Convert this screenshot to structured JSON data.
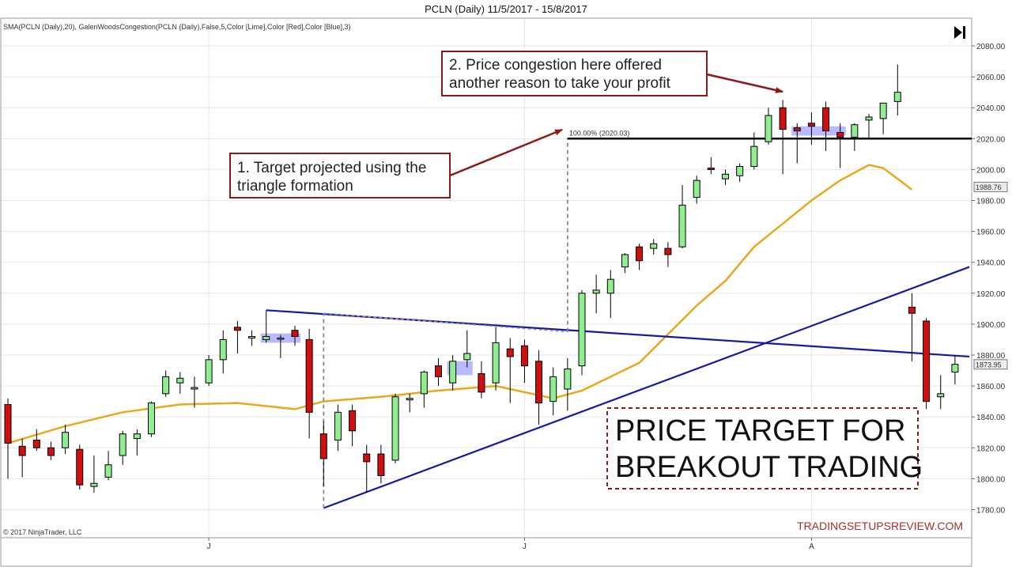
{
  "chart_data": {
    "type": "candlestick",
    "title": "PCLN (Daily)  11/5/2017 - 15/8/2017",
    "indicator_label": "SMA(PCLN (Daily),20), GalenWoodsCongestion(PCLN (Daily),False,5,Color [Lime],Color [Red],Color [Blue],3)",
    "copyright": "© 2017 NinjaTrader, LLC",
    "brand": "TRADINGSETUPSREVIEW.COM",
    "headline_lines": [
      "PRICE TARGET FOR",
      "BREAKOUT TRADING"
    ],
    "callout_1_lines": [
      "1. Target projected using the",
      "triangle formation"
    ],
    "callout_2_lines": [
      "2. Price congestion here offered",
      "another reason to take your profit"
    ],
    "fib_label": "100.00% (2020.03)",
    "target_level": 2020.03,
    "ylim": [
      1770,
      2090
    ],
    "y_ticks": [
      1780,
      1800,
      1820,
      1840,
      1860,
      1880,
      1900,
      1920,
      1940,
      1960,
      1980,
      2000,
      2020,
      2040,
      2060,
      2080
    ],
    "y_tick_labels": [
      "1780.00",
      "1800.00",
      "1820.00",
      "1840.00",
      "1860.00",
      "1880.00",
      "1900.00",
      "1920.00",
      "1940.00",
      "1960.00",
      "1980.00",
      "2000.00",
      "2020.00",
      "2040.00",
      "2060.00",
      "2080.00"
    ],
    "x_ticks": [
      {
        "index": 14,
        "label": "J"
      },
      {
        "index": 36,
        "label": "J"
      },
      {
        "index": 56,
        "label": "A"
      }
    ],
    "price_badges": [
      {
        "value": 1988.76,
        "label": "1988.76"
      },
      {
        "value": 1873.95,
        "label": "1873.95"
      }
    ],
    "colors": {
      "up": "#90ee90",
      "down": "#d01010",
      "sma": "#e8a820",
      "trend": "#1a1aa0",
      "congestion": "#8080ff",
      "callout_border": "#8b1a1a",
      "target": "#000000"
    },
    "candles": [
      {
        "o": 1848,
        "h": 1852,
        "l": 1800,
        "c": 1823
      },
      {
        "o": 1821,
        "h": 1826,
        "l": 1801,
        "c": 1815
      },
      {
        "o": 1825,
        "h": 1832,
        "l": 1818,
        "c": 1820
      },
      {
        "o": 1820,
        "h": 1824,
        "l": 1812,
        "c": 1815
      },
      {
        "o": 1820,
        "h": 1835,
        "l": 1816,
        "c": 1830
      },
      {
        "o": 1819,
        "h": 1822,
        "l": 1793,
        "c": 1796
      },
      {
        "o": 1795,
        "h": 1815,
        "l": 1791,
        "c": 1797
      },
      {
        "o": 1801,
        "h": 1818,
        "l": 1799,
        "c": 1809
      },
      {
        "o": 1815,
        "h": 1831,
        "l": 1809,
        "c": 1829
      },
      {
        "o": 1826,
        "h": 1832,
        "l": 1815,
        "c": 1829
      },
      {
        "o": 1829,
        "h": 1850,
        "l": 1827,
        "c": 1849
      },
      {
        "o": 1855,
        "h": 1870,
        "l": 1853,
        "c": 1866
      },
      {
        "o": 1862,
        "h": 1869,
        "l": 1855,
        "c": 1865
      },
      {
        "o": 1858,
        "h": 1866,
        "l": 1846,
        "c": 1859
      },
      {
        "o": 1862,
        "h": 1880,
        "l": 1860,
        "c": 1877
      },
      {
        "o": 1877,
        "h": 1896,
        "l": 1868,
        "c": 1890
      },
      {
        "o": 1898,
        "h": 1902,
        "l": 1881,
        "c": 1896
      },
      {
        "o": 1891,
        "h": 1896,
        "l": 1886,
        "c": 1892
      },
      {
        "o": 1890,
        "h": 1909,
        "l": 1888,
        "c": 1892
      },
      {
        "o": 1891,
        "h": 1893,
        "l": 1878,
        "c": 1891
      },
      {
        "o": 1896,
        "h": 1899,
        "l": 1886,
        "c": 1892
      },
      {
        "o": 1890,
        "h": 1897,
        "l": 1826,
        "c": 1843
      },
      {
        "o": 1829,
        "h": 1837,
        "l": 1795,
        "c": 1813
      },
      {
        "o": 1825,
        "h": 1848,
        "l": 1818,
        "c": 1843
      },
      {
        "o": 1844,
        "h": 1848,
        "l": 1821,
        "c": 1831
      },
      {
        "o": 1816,
        "h": 1822,
        "l": 1791,
        "c": 1811
      },
      {
        "o": 1816,
        "h": 1822,
        "l": 1797,
        "c": 1802
      },
      {
        "o": 1812,
        "h": 1855,
        "l": 1810,
        "c": 1853
      },
      {
        "o": 1851,
        "h": 1855,
        "l": 1843,
        "c": 1852
      },
      {
        "o": 1855,
        "h": 1870,
        "l": 1846,
        "c": 1869
      },
      {
        "o": 1873,
        "h": 1878,
        "l": 1860,
        "c": 1866
      },
      {
        "o": 1862,
        "h": 1880,
        "l": 1857,
        "c": 1876
      },
      {
        "o": 1877,
        "h": 1896,
        "l": 1872,
        "c": 1881
      },
      {
        "o": 1868,
        "h": 1876,
        "l": 1852,
        "c": 1856
      },
      {
        "o": 1862,
        "h": 1898,
        "l": 1857,
        "c": 1888
      },
      {
        "o": 1884,
        "h": 1891,
        "l": 1849,
        "c": 1879
      },
      {
        "o": 1886,
        "h": 1890,
        "l": 1862,
        "c": 1873
      },
      {
        "o": 1876,
        "h": 1883,
        "l": 1835,
        "c": 1849
      },
      {
        "o": 1850,
        "h": 1872,
        "l": 1841,
        "c": 1866
      },
      {
        "o": 1858,
        "h": 1878,
        "l": 1844,
        "c": 1871
      },
      {
        "o": 1873,
        "h": 1922,
        "l": 1867,
        "c": 1920
      },
      {
        "o": 1920,
        "h": 1932,
        "l": 1907,
        "c": 1922
      },
      {
        "o": 1920,
        "h": 1935,
        "l": 1904,
        "c": 1929
      },
      {
        "o": 1937,
        "h": 1946,
        "l": 1933,
        "c": 1945
      },
      {
        "o": 1950,
        "h": 1952,
        "l": 1935,
        "c": 1941
      },
      {
        "o": 1949,
        "h": 1955,
        "l": 1945,
        "c": 1952
      },
      {
        "o": 1949,
        "h": 1953,
        "l": 1937,
        "c": 1945
      },
      {
        "o": 1950,
        "h": 1990,
        "l": 1949,
        "c": 1977
      },
      {
        "o": 1982,
        "h": 1996,
        "l": 1978,
        "c": 1993
      },
      {
        "o": 2001,
        "h": 2008,
        "l": 1997,
        "c": 2000
      },
      {
        "o": 1994,
        "h": 2000,
        "l": 1990,
        "c": 1997
      },
      {
        "o": 1996,
        "h": 2004,
        "l": 1992,
        "c": 2002
      },
      {
        "o": 2002,
        "h": 2024,
        "l": 2000,
        "c": 2015
      },
      {
        "o": 2018,
        "h": 2040,
        "l": 2016,
        "c": 2035
      },
      {
        "o": 2040,
        "h": 2045,
        "l": 1997,
        "c": 2026
      },
      {
        "o": 2027,
        "h": 2030,
        "l": 2004,
        "c": 2025
      },
      {
        "o": 2030,
        "h": 2037,
        "l": 2016,
        "c": 2028
      },
      {
        "o": 2040,
        "h": 2044,
        "l": 2012,
        "c": 2025
      },
      {
        "o": 2024,
        "h": 2030,
        "l": 2001,
        "c": 2021
      },
      {
        "o": 2021,
        "h": 2030,
        "l": 2012,
        "c": 2029
      },
      {
        "o": 2032,
        "h": 2036,
        "l": 2020,
        "c": 2034
      },
      {
        "o": 2033,
        "h": 2043,
        "l": 2023,
        "c": 2043
      },
      {
        "o": 2044,
        "h": 2068,
        "l": 2035,
        "c": 2050
      },
      {
        "o": 1911,
        "h": 1920,
        "l": 1876,
        "c": 1907
      },
      {
        "o": 1902,
        "h": 1904,
        "l": 1845,
        "c": 1850
      },
      {
        "o": 1853,
        "h": 1867,
        "l": 1845,
        "c": 1855
      },
      {
        "o": 1869,
        "h": 1880,
        "l": 1861,
        "c": 1874
      }
    ],
    "sma": [
      {
        "index": 0,
        "value": 1823
      },
      {
        "index": 4,
        "value": 1834
      },
      {
        "index": 8,
        "value": 1843
      },
      {
        "index": 12,
        "value": 1848
      },
      {
        "index": 16,
        "value": 1849
      },
      {
        "index": 20,
        "value": 1845
      },
      {
        "index": 22,
        "value": 1850
      },
      {
        "index": 26,
        "value": 1853
      },
      {
        "index": 30,
        "value": 1857
      },
      {
        "index": 34,
        "value": 1860
      },
      {
        "index": 38,
        "value": 1852
      },
      {
        "index": 40,
        "value": 1857
      },
      {
        "index": 44,
        "value": 1875
      },
      {
        "index": 48,
        "value": 1912
      },
      {
        "index": 50,
        "value": 1928
      },
      {
        "index": 52,
        "value": 1950
      },
      {
        "index": 54,
        "value": 1965
      },
      {
        "index": 56,
        "value": 1980
      },
      {
        "index": 58,
        "value": 1993
      },
      {
        "index": 60,
        "value": 2003
      },
      {
        "index": 61,
        "value": 2001
      },
      {
        "index": 62,
        "value": 1994
      },
      {
        "index": 63,
        "value": 1987
      }
    ],
    "trendlines": [
      {
        "from_index": 18,
        "from_value": 1909,
        "to_index": 67,
        "to_value": 1879
      },
      {
        "from_index": 22,
        "from_value": 1781,
        "to_index": 67,
        "to_value": 1937
      }
    ],
    "triangle_top": {
      "from_index": 22,
      "from_value": 1907,
      "to_index": 39,
      "to_value": 1895
    },
    "triangle_height": {
      "index": 22,
      "from_value": 1781,
      "to_value": 1907
    },
    "projection": {
      "index": 39,
      "from_value": 1895,
      "to_value": 2020.03
    },
    "congestion_boxes": [
      {
        "from_index": 18,
        "to_index": 20,
        "low": 1888,
        "high": 1894
      },
      {
        "from_index": 31,
        "to_index": 32,
        "low": 1867,
        "high": 1876
      },
      {
        "from_index": 55,
        "to_index": 58,
        "low": 2022,
        "high": 2028
      }
    ]
  }
}
